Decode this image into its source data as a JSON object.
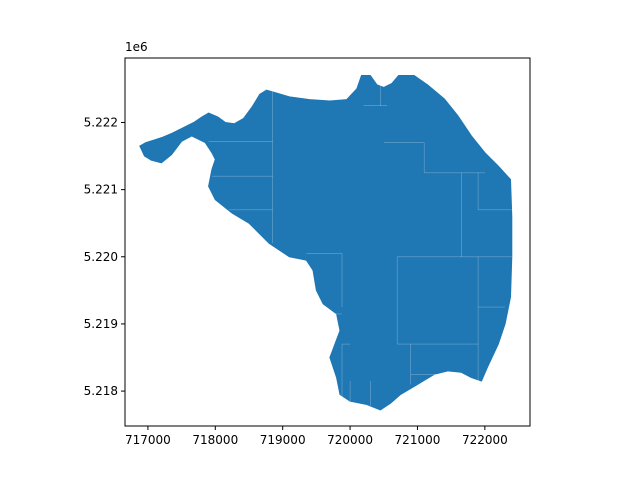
{
  "chart_data": {
    "type": "area",
    "title": "",
    "xlabel": "",
    "ylabel": "",
    "xlim": [
      716660,
      722670
    ],
    "ylim": [
      5217480,
      5222960
    ],
    "y_offset_text": "1e6",
    "x_ticks": [
      {
        "value": 717000,
        "label": "717000"
      },
      {
        "value": 718000,
        "label": "718000"
      },
      {
        "value": 719000,
        "label": "719000"
      },
      {
        "value": 720000,
        "label": "720000"
      },
      {
        "value": 721000,
        "label": "721000"
      },
      {
        "value": 722000,
        "label": "722000"
      }
    ],
    "y_ticks": [
      {
        "value": 5218000,
        "label": "5.218"
      },
      {
        "value": 5219000,
        "label": "5.219"
      },
      {
        "value": 5220000,
        "label": "5.220"
      },
      {
        "value": 5221000,
        "label": "5.221"
      },
      {
        "value": 5222000,
        "label": "5.222"
      }
    ],
    "grid": false,
    "fill_color": "#1f77b4",
    "edge_color": "#ffffff",
    "boundary": [
      [
        716880,
        5221650
      ],
      [
        716970,
        5221700
      ],
      [
        717100,
        5221740
      ],
      [
        717220,
        5221780
      ],
      [
        717360,
        5221840
      ],
      [
        717520,
        5221920
      ],
      [
        717680,
        5222000
      ],
      [
        717800,
        5222080
      ],
      [
        717900,
        5222140
      ],
      [
        718040,
        5222080
      ],
      [
        718150,
        5222000
      ],
      [
        718280,
        5221980
      ],
      [
        718420,
        5222060
      ],
      [
        718550,
        5222240
      ],
      [
        718660,
        5222420
      ],
      [
        718760,
        5222480
      ],
      [
        718900,
        5222440
      ],
      [
        719100,
        5222380
      ],
      [
        719400,
        5222340
      ],
      [
        719700,
        5222320
      ],
      [
        719950,
        5222340
      ],
      [
        720100,
        5222500
      ],
      [
        720170,
        5222700
      ],
      [
        720300,
        5222700
      ],
      [
        720400,
        5222560
      ],
      [
        720500,
        5222520
      ],
      [
        720620,
        5222580
      ],
      [
        720720,
        5222700
      ],
      [
        720950,
        5222700
      ],
      [
        721150,
        5222560
      ],
      [
        721400,
        5222350
      ],
      [
        721600,
        5222100
      ],
      [
        721800,
        5221800
      ],
      [
        722000,
        5221550
      ],
      [
        722200,
        5221350
      ],
      [
        722380,
        5221150
      ],
      [
        722400,
        5220600
      ],
      [
        722400,
        5220000
      ],
      [
        722380,
        5219400
      ],
      [
        722300,
        5219000
      ],
      [
        722200,
        5218700
      ],
      [
        722050,
        5218380
      ],
      [
        721950,
        5218150
      ],
      [
        721800,
        5218200
      ],
      [
        721650,
        5218280
      ],
      [
        721450,
        5218300
      ],
      [
        721250,
        5218250
      ],
      [
        721000,
        5218100
      ],
      [
        720750,
        5217950
      ],
      [
        720600,
        5217820
      ],
      [
        720450,
        5217720
      ],
      [
        720250,
        5217800
      ],
      [
        720000,
        5217850
      ],
      [
        719850,
        5217950
      ],
      [
        719800,
        5218200
      ],
      [
        719700,
        5218500
      ],
      [
        719850,
        5218900
      ],
      [
        719800,
        5219150
      ],
      [
        719600,
        5219300
      ],
      [
        719500,
        5219500
      ],
      [
        719450,
        5219800
      ],
      [
        719350,
        5219950
      ],
      [
        719100,
        5220000
      ],
      [
        718800,
        5220200
      ],
      [
        718500,
        5220500
      ],
      [
        718250,
        5220650
      ],
      [
        718000,
        5220850
      ],
      [
        717900,
        5221050
      ],
      [
        717950,
        5221300
      ],
      [
        718000,
        5221450
      ],
      [
        717950,
        5221550
      ],
      [
        717850,
        5221700
      ],
      [
        717650,
        5221800
      ],
      [
        717500,
        5221720
      ],
      [
        717350,
        5221520
      ],
      [
        717200,
        5221400
      ],
      [
        717050,
        5221440
      ],
      [
        716950,
        5221500
      ]
    ],
    "internal_lines": [
      [
        [
          718850,
          5222480
        ],
        [
          718850,
          5220200
        ]
      ],
      [
        [
          717900,
          5221720
        ],
        [
          718850,
          5221720
        ]
      ],
      [
        [
          717950,
          5221200
        ],
        [
          718850,
          5221200
        ]
      ],
      [
        [
          718200,
          5220700
        ],
        [
          718850,
          5220700
        ]
      ],
      [
        [
          719350,
          5220050
        ],
        [
          719880,
          5220050
        ]
      ],
      [
        [
          719880,
          5220050
        ],
        [
          719880,
          5219250
        ]
      ],
      [
        [
          719450,
          5219150
        ],
        [
          719880,
          5219150
        ]
      ],
      [
        [
          719880,
          5218700
        ],
        [
          719880,
          5217850
        ]
      ],
      [
        [
          719880,
          5218700
        ],
        [
          720000,
          5218700
        ]
      ],
      [
        [
          720450,
          5222550
        ],
        [
          720450,
          5222250
        ]
      ],
      [
        [
          720200,
          5222250
        ],
        [
          720550,
          5222250
        ]
      ],
      [
        [
          720500,
          5221700
        ],
        [
          721100,
          5221700
        ]
      ],
      [
        [
          721100,
          5221700
        ],
        [
          721100,
          5221250
        ]
      ],
      [
        [
          721100,
          5221250
        ],
        [
          722000,
          5221250
        ]
      ],
      [
        [
          721650,
          5221250
        ],
        [
          721650,
          5220000
        ]
      ],
      [
        [
          721900,
          5221250
        ],
        [
          721900,
          5220700
        ]
      ],
      [
        [
          721900,
          5220700
        ],
        [
          722400,
          5220700
        ]
      ],
      [
        [
          720700,
          5220000
        ],
        [
          722400,
          5220000
        ]
      ],
      [
        [
          720700,
          5220000
        ],
        [
          720700,
          5218700
        ]
      ],
      [
        [
          721900,
          5220000
        ],
        [
          721900,
          5219250
        ]
      ],
      [
        [
          721900,
          5219250
        ],
        [
          722300,
          5219250
        ]
      ],
      [
        [
          720700,
          5218700
        ],
        [
          721900,
          5218700
        ]
      ],
      [
        [
          721900,
          5219250
        ],
        [
          721900,
          5218150
        ]
      ],
      [
        [
          720900,
          5218700
        ],
        [
          720900,
          5218100
        ]
      ],
      [
        [
          720900,
          5218250
        ],
        [
          721300,
          5218250
        ]
      ],
      [
        [
          720000,
          5218150
        ],
        [
          720000,
          5217850
        ]
      ],
      [
        [
          720300,
          5218150
        ],
        [
          720300,
          5217780
        ]
      ]
    ]
  }
}
